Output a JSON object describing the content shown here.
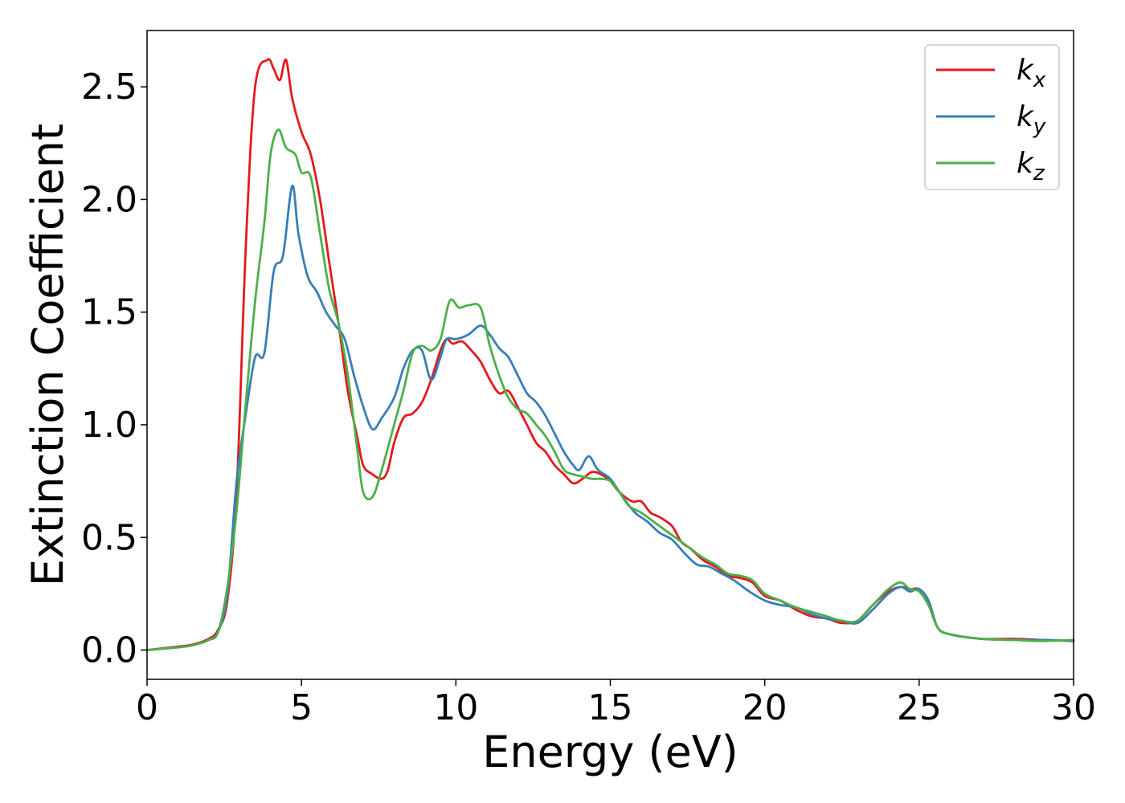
{
  "chart_data": {
    "type": "line",
    "xlabel": "Energy (eV)",
    "ylabel": "Extinction Coefficient",
    "xlim": [
      0,
      30
    ],
    "ylim": [
      -0.13,
      2.75
    ],
    "xticks": [
      0,
      5,
      10,
      15,
      20,
      25,
      30
    ],
    "xtick_labels": [
      "0",
      "5",
      "10",
      "15",
      "20",
      "25",
      "30"
    ],
    "yticks": [
      0.0,
      0.5,
      1.0,
      1.5,
      2.0,
      2.5
    ],
    "ytick_labels": [
      "0.0",
      "0.5",
      "1.0",
      "1.5",
      "2.0",
      "2.5"
    ],
    "grid": false,
    "legend_position": "top-right",
    "series": [
      {
        "name": "k_x",
        "label_base": "k",
        "label_sub": "x",
        "color": "#e41a1c",
        "points": [
          [
            0,
            0
          ],
          [
            1,
            0.015
          ],
          [
            1.5,
            0.025
          ],
          [
            2,
            0.05
          ],
          [
            2.3,
            0.09
          ],
          [
            2.6,
            0.22
          ],
          [
            2.9,
            0.7
          ],
          [
            3.2,
            1.8
          ],
          [
            3.5,
            2.5
          ],
          [
            3.9,
            2.62
          ],
          [
            4.1,
            2.58
          ],
          [
            4.3,
            2.53
          ],
          [
            4.5,
            2.62
          ],
          [
            4.7,
            2.45
          ],
          [
            5,
            2.3
          ],
          [
            5.3,
            2.2
          ],
          [
            5.6,
            2.0
          ],
          [
            5.9,
            1.72
          ],
          [
            6.2,
            1.45
          ],
          [
            6.5,
            1.15
          ],
          [
            6.8,
            0.95
          ],
          [
            7.0,
            0.82
          ],
          [
            7.3,
            0.78
          ],
          [
            7.6,
            0.76
          ],
          [
            7.8,
            0.8
          ],
          [
            8.0,
            0.92
          ],
          [
            8.3,
            1.03
          ],
          [
            8.6,
            1.05
          ],
          [
            8.9,
            1.1
          ],
          [
            9.2,
            1.2
          ],
          [
            9.5,
            1.33
          ],
          [
            9.7,
            1.38
          ],
          [
            9.9,
            1.36
          ],
          [
            10.2,
            1.37
          ],
          [
            10.5,
            1.33
          ],
          [
            10.8,
            1.28
          ],
          [
            11.1,
            1.2
          ],
          [
            11.4,
            1.14
          ],
          [
            11.7,
            1.15
          ],
          [
            12.0,
            1.08
          ],
          [
            12.3,
            1.0
          ],
          [
            12.6,
            0.92
          ],
          [
            12.9,
            0.88
          ],
          [
            13.2,
            0.82
          ],
          [
            13.5,
            0.78
          ],
          [
            13.8,
            0.74
          ],
          [
            14.1,
            0.76
          ],
          [
            14.4,
            0.79
          ],
          [
            14.7,
            0.78
          ],
          [
            15.0,
            0.75
          ],
          [
            15.3,
            0.7
          ],
          [
            15.7,
            0.66
          ],
          [
            16.0,
            0.66
          ],
          [
            16.3,
            0.61
          ],
          [
            16.6,
            0.59
          ],
          [
            17.0,
            0.55
          ],
          [
            17.3,
            0.48
          ],
          [
            17.6,
            0.45
          ],
          [
            18.0,
            0.4
          ],
          [
            18.4,
            0.37
          ],
          [
            18.8,
            0.33
          ],
          [
            19.2,
            0.32
          ],
          [
            19.6,
            0.3
          ],
          [
            20.0,
            0.24
          ],
          [
            20.5,
            0.22
          ],
          [
            21.0,
            0.18
          ],
          [
            21.5,
            0.15
          ],
          [
            22.0,
            0.14
          ],
          [
            22.5,
            0.12
          ],
          [
            23.0,
            0.13
          ],
          [
            23.5,
            0.2
          ],
          [
            24.0,
            0.26
          ],
          [
            24.4,
            0.28
          ],
          [
            24.7,
            0.27
          ],
          [
            25.0,
            0.27
          ],
          [
            25.3,
            0.22
          ],
          [
            25.6,
            0.1
          ],
          [
            26.0,
            0.07
          ],
          [
            27,
            0.05
          ],
          [
            28,
            0.05
          ],
          [
            29,
            0.045
          ],
          [
            30,
            0.04
          ]
        ]
      },
      {
        "name": "k_y",
        "label_base": "k",
        "label_sub": "y",
        "color": "#377eb8",
        "points": [
          [
            0,
            0
          ],
          [
            1,
            0.012
          ],
          [
            1.5,
            0.022
          ],
          [
            2,
            0.045
          ],
          [
            2.3,
            0.08
          ],
          [
            2.6,
            0.25
          ],
          [
            2.9,
            0.75
          ],
          [
            3.2,
            1.05
          ],
          [
            3.5,
            1.3
          ],
          [
            3.8,
            1.32
          ],
          [
            4.1,
            1.68
          ],
          [
            4.4,
            1.75
          ],
          [
            4.7,
            2.06
          ],
          [
            4.9,
            1.85
          ],
          [
            5.2,
            1.66
          ],
          [
            5.5,
            1.59
          ],
          [
            5.8,
            1.5
          ],
          [
            6.1,
            1.44
          ],
          [
            6.4,
            1.38
          ],
          [
            6.7,
            1.22
          ],
          [
            7.0,
            1.08
          ],
          [
            7.3,
            0.98
          ],
          [
            7.6,
            1.03
          ],
          [
            8.0,
            1.12
          ],
          [
            8.3,
            1.25
          ],
          [
            8.6,
            1.33
          ],
          [
            8.9,
            1.33
          ],
          [
            9.2,
            1.2
          ],
          [
            9.5,
            1.3
          ],
          [
            9.7,
            1.38
          ],
          [
            10.0,
            1.38
          ],
          [
            10.4,
            1.4
          ],
          [
            10.8,
            1.44
          ],
          [
            11.1,
            1.4
          ],
          [
            11.4,
            1.34
          ],
          [
            11.7,
            1.3
          ],
          [
            12.0,
            1.22
          ],
          [
            12.3,
            1.14
          ],
          [
            12.6,
            1.1
          ],
          [
            12.9,
            1.04
          ],
          [
            13.2,
            0.96
          ],
          [
            13.5,
            0.88
          ],
          [
            13.8,
            0.82
          ],
          [
            14.0,
            0.8
          ],
          [
            14.3,
            0.86
          ],
          [
            14.6,
            0.8
          ],
          [
            15.0,
            0.76
          ],
          [
            15.4,
            0.68
          ],
          [
            15.8,
            0.61
          ],
          [
            16.2,
            0.57
          ],
          [
            16.6,
            0.52
          ],
          [
            17.0,
            0.49
          ],
          [
            17.4,
            0.43
          ],
          [
            17.8,
            0.38
          ],
          [
            18.2,
            0.37
          ],
          [
            18.6,
            0.34
          ],
          [
            19.0,
            0.31
          ],
          [
            19.5,
            0.26
          ],
          [
            20.0,
            0.22
          ],
          [
            20.5,
            0.2
          ],
          [
            21.0,
            0.19
          ],
          [
            21.5,
            0.16
          ],
          [
            22.0,
            0.14
          ],
          [
            22.5,
            0.13
          ],
          [
            23.0,
            0.12
          ],
          [
            23.5,
            0.18
          ],
          [
            24.0,
            0.25
          ],
          [
            24.4,
            0.28
          ],
          [
            24.7,
            0.26
          ],
          [
            25.0,
            0.27
          ],
          [
            25.3,
            0.22
          ],
          [
            25.6,
            0.1
          ],
          [
            26.0,
            0.07
          ],
          [
            27,
            0.05
          ],
          [
            28,
            0.045
          ],
          [
            29,
            0.045
          ],
          [
            30,
            0.04
          ]
        ]
      },
      {
        "name": "k_z",
        "label_base": "k",
        "label_sub": "z",
        "color": "#4daf4a",
        "points": [
          [
            0,
            0
          ],
          [
            1,
            0.012
          ],
          [
            1.5,
            0.022
          ],
          [
            2,
            0.045
          ],
          [
            2.3,
            0.08
          ],
          [
            2.6,
            0.28
          ],
          [
            2.9,
            0.62
          ],
          [
            3.2,
            1.1
          ],
          [
            3.5,
            1.55
          ],
          [
            3.8,
            1.9
          ],
          [
            4.0,
            2.2
          ],
          [
            4.25,
            2.31
          ],
          [
            4.5,
            2.23
          ],
          [
            4.8,
            2.2
          ],
          [
            5.0,
            2.12
          ],
          [
            5.3,
            2.1
          ],
          [
            5.6,
            1.85
          ],
          [
            5.9,
            1.6
          ],
          [
            6.2,
            1.45
          ],
          [
            6.5,
            1.22
          ],
          [
            6.8,
            0.9
          ],
          [
            7.0,
            0.7
          ],
          [
            7.3,
            0.68
          ],
          [
            7.6,
            0.8
          ],
          [
            8.0,
            1.0
          ],
          [
            8.3,
            1.15
          ],
          [
            8.6,
            1.32
          ],
          [
            8.9,
            1.35
          ],
          [
            9.2,
            1.33
          ],
          [
            9.5,
            1.38
          ],
          [
            9.8,
            1.55
          ],
          [
            10.1,
            1.52
          ],
          [
            10.4,
            1.53
          ],
          [
            10.8,
            1.52
          ],
          [
            11.1,
            1.35
          ],
          [
            11.4,
            1.22
          ],
          [
            11.7,
            1.12
          ],
          [
            12.0,
            1.07
          ],
          [
            12.3,
            1.05
          ],
          [
            12.6,
            1.0
          ],
          [
            12.9,
            0.95
          ],
          [
            13.2,
            0.88
          ],
          [
            13.5,
            0.8
          ],
          [
            13.8,
            0.78
          ],
          [
            14.1,
            0.77
          ],
          [
            14.4,
            0.76
          ],
          [
            14.7,
            0.76
          ],
          [
            15.0,
            0.75
          ],
          [
            15.3,
            0.7
          ],
          [
            15.6,
            0.64
          ],
          [
            16.0,
            0.61
          ],
          [
            16.4,
            0.57
          ],
          [
            16.8,
            0.53
          ],
          [
            17.2,
            0.49
          ],
          [
            17.6,
            0.45
          ],
          [
            18.0,
            0.41
          ],
          [
            18.4,
            0.38
          ],
          [
            18.8,
            0.34
          ],
          [
            19.2,
            0.33
          ],
          [
            19.6,
            0.31
          ],
          [
            20.0,
            0.25
          ],
          [
            20.5,
            0.22
          ],
          [
            21.0,
            0.19
          ],
          [
            21.5,
            0.17
          ],
          [
            22.0,
            0.15
          ],
          [
            22.5,
            0.13
          ],
          [
            23.0,
            0.13
          ],
          [
            23.5,
            0.2
          ],
          [
            24.0,
            0.27
          ],
          [
            24.4,
            0.3
          ],
          [
            24.7,
            0.27
          ],
          [
            25.0,
            0.26
          ],
          [
            25.3,
            0.2
          ],
          [
            25.6,
            0.1
          ],
          [
            26.0,
            0.07
          ],
          [
            27,
            0.05
          ],
          [
            28,
            0.045
          ],
          [
            29,
            0.04
          ],
          [
            30,
            0.045
          ]
        ]
      }
    ]
  }
}
